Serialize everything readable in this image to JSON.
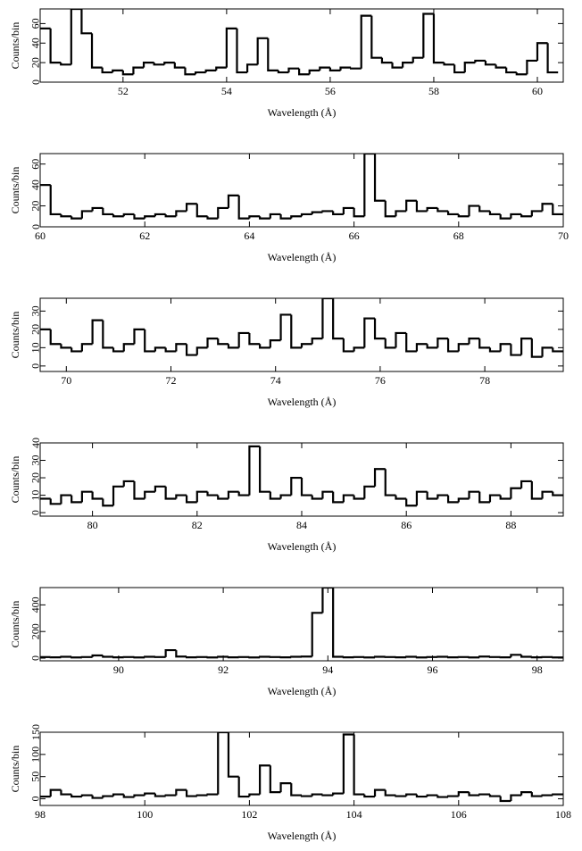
{
  "chart_data": [
    {
      "type": "histogram",
      "xlabel": "Wavelength (Å)",
      "ylabel": "Counts/bin",
      "bins": [
        50.4,
        50.6,
        50.8,
        51.0,
        51.2,
        51.4,
        51.6,
        51.8,
        52.0,
        52.2,
        52.4,
        52.6,
        52.8,
        53.0,
        53.2,
        53.4,
        53.6,
        53.8,
        54.0,
        54.2,
        54.4,
        54.6,
        54.8,
        55.0,
        55.2,
        55.4,
        55.6,
        55.8,
        56.0,
        56.2,
        56.4,
        56.6,
        56.8,
        57.0,
        57.2,
        57.4,
        57.6,
        57.8,
        58.0,
        58.2,
        58.4,
        58.6,
        58.8,
        59.0,
        59.2,
        59.4,
        59.6,
        59.8,
        60.0,
        60.2,
        60.4
      ],
      "values": [
        55,
        20,
        18,
        75,
        50,
        15,
        10,
        12,
        8,
        15,
        20,
        18,
        20,
        15,
        8,
        10,
        12,
        15,
        55,
        10,
        18,
        45,
        12,
        10,
        14,
        8,
        12,
        15,
        12,
        15,
        14,
        68,
        25,
        20,
        15,
        20,
        25,
        70,
        20,
        18,
        10,
        20,
        22,
        18,
        15,
        10,
        8,
        22,
        40,
        10
      ],
      "color": "#000000",
      "xlim": [
        50.4,
        60.5
      ],
      "ylim": [
        0,
        75
      ],
      "xticks": [
        52,
        54,
        56,
        58,
        60
      ],
      "yticks": [
        0,
        20,
        40,
        60
      ]
    },
    {
      "type": "histogram",
      "xlabel": "Wavelength (Å)",
      "ylabel": "Counts/bin",
      "bins": [
        60.0,
        60.2,
        60.4,
        60.6,
        60.8,
        61.0,
        61.2,
        61.4,
        61.6,
        61.8,
        62.0,
        62.2,
        62.4,
        62.6,
        62.8,
        63.0,
        63.2,
        63.4,
        63.6,
        63.8,
        64.0,
        64.2,
        64.4,
        64.6,
        64.8,
        65.0,
        65.2,
        65.4,
        65.6,
        65.8,
        66.0,
        66.2,
        66.4,
        66.6,
        66.8,
        67.0,
        67.2,
        67.4,
        67.6,
        67.8,
        68.0,
        68.2,
        68.4,
        68.6,
        68.8,
        69.0,
        69.2,
        69.4,
        69.6,
        69.8,
        70.0
      ],
      "values": [
        40,
        12,
        10,
        8,
        15,
        18,
        12,
        10,
        12,
        8,
        10,
        12,
        10,
        15,
        22,
        10,
        8,
        18,
        30,
        8,
        10,
        8,
        12,
        8,
        10,
        12,
        14,
        15,
        12,
        18,
        10,
        70,
        25,
        10,
        15,
        25,
        15,
        18,
        15,
        12,
        10,
        20,
        15,
        12,
        8,
        12,
        10,
        15,
        22,
        12
      ],
      "color": "#000000",
      "xlim": [
        60,
        70
      ],
      "ylim": [
        0,
        70
      ],
      "xticks": [
        60,
        62,
        64,
        66,
        68,
        70
      ],
      "yticks": [
        0,
        20,
        40,
        60
      ]
    },
    {
      "type": "histogram",
      "xlabel": "Wavelength (Å)",
      "ylabel": "Counts/bin",
      "bins": [
        69.5,
        69.7,
        69.9,
        70.1,
        70.3,
        70.5,
        70.7,
        70.9,
        71.1,
        71.3,
        71.5,
        71.7,
        71.9,
        72.1,
        72.3,
        72.5,
        72.7,
        72.9,
        73.1,
        73.3,
        73.5,
        73.7,
        73.9,
        74.1,
        74.3,
        74.5,
        74.7,
        74.9,
        75.1,
        75.3,
        75.5,
        75.7,
        75.9,
        76.1,
        76.3,
        76.5,
        76.7,
        76.9,
        77.1,
        77.3,
        77.5,
        77.7,
        77.9,
        78.1,
        78.3,
        78.5,
        78.7,
        78.9,
        79.1,
        79.3,
        79.5
      ],
      "values": [
        20,
        12,
        10,
        8,
        12,
        25,
        10,
        8,
        12,
        20,
        8,
        10,
        8,
        12,
        6,
        10,
        15,
        12,
        10,
        18,
        12,
        10,
        14,
        28,
        10,
        12,
        15,
        37,
        15,
        8,
        10,
        26,
        15,
        10,
        18,
        8,
        12,
        10,
        15,
        8,
        12,
        15,
        10,
        8,
        12,
        6,
        15,
        5,
        10,
        8
      ],
      "color": "#000000",
      "xlim": [
        69.5,
        79.5
      ],
      "ylim": [
        -3,
        37
      ],
      "xticks": [
        70,
        72,
        74,
        76,
        78
      ],
      "yticks": [
        0,
        10,
        20,
        30
      ]
    },
    {
      "type": "histogram",
      "xlabel": "Wavelength (Å)",
      "ylabel": "Counts/bin",
      "bins": [
        79.0,
        79.2,
        79.4,
        79.6,
        79.8,
        80.0,
        80.2,
        80.4,
        80.6,
        80.8,
        81.0,
        81.2,
        81.4,
        81.6,
        81.8,
        82.0,
        82.2,
        82.4,
        82.6,
        82.8,
        83.0,
        83.2,
        83.4,
        83.6,
        83.8,
        84.0,
        84.2,
        84.4,
        84.6,
        84.8,
        85.0,
        85.2,
        85.4,
        85.6,
        85.8,
        86.0,
        86.2,
        86.4,
        86.6,
        86.8,
        87.0,
        87.2,
        87.4,
        87.6,
        87.8,
        88.0,
        88.2,
        88.4,
        88.6,
        88.8,
        89.0
      ],
      "values": [
        8,
        5,
        10,
        6,
        12,
        8,
        4,
        15,
        18,
        8,
        12,
        15,
        8,
        10,
        6,
        12,
        10,
        8,
        12,
        10,
        38,
        12,
        8,
        10,
        20,
        10,
        8,
        12,
        6,
        10,
        8,
        15,
        25,
        10,
        8,
        4,
        12,
        8,
        10,
        6,
        8,
        12,
        6,
        10,
        8,
        14,
        18,
        8,
        12,
        10
      ],
      "color": "#000000",
      "xlim": [
        79,
        89
      ],
      "ylim": [
        -2,
        40
      ],
      "xticks": [
        80,
        82,
        84,
        86,
        88
      ],
      "yticks": [
        0,
        10,
        20,
        30,
        40
      ]
    },
    {
      "type": "histogram",
      "xlabel": "Wavelength (Å)",
      "ylabel": "Counts/bin",
      "bins": [
        88.5,
        88.7,
        88.9,
        89.1,
        89.3,
        89.5,
        89.7,
        89.9,
        90.1,
        90.3,
        90.5,
        90.7,
        90.9,
        91.1,
        91.3,
        91.5,
        91.7,
        91.9,
        92.1,
        92.3,
        92.5,
        92.7,
        92.9,
        93.1,
        93.3,
        93.5,
        93.7,
        93.9,
        94.1,
        94.3,
        94.5,
        94.7,
        94.9,
        95.1,
        95.3,
        95.5,
        95.7,
        95.9,
        96.1,
        96.3,
        96.5,
        96.7,
        96.9,
        97.1,
        97.3,
        97.5,
        97.7,
        97.9,
        98.1,
        98.3,
        98.5
      ],
      "values": [
        8,
        6,
        10,
        5,
        8,
        20,
        10,
        6,
        8,
        5,
        10,
        8,
        60,
        12,
        6,
        8,
        5,
        10,
        6,
        8,
        5,
        10,
        8,
        6,
        10,
        12,
        340,
        530,
        10,
        6,
        8,
        5,
        10,
        8,
        6,
        10,
        5,
        8,
        10,
        6,
        8,
        5,
        12,
        8,
        6,
        25,
        10,
        6,
        8,
        5
      ],
      "color": "#000000",
      "xlim": [
        88.5,
        98.5
      ],
      "ylim": [
        -20,
        530
      ],
      "xticks": [
        90,
        92,
        94,
        96,
        98
      ],
      "yticks": [
        0,
        200,
        400
      ]
    },
    {
      "type": "histogram",
      "xlabel": "Wavelength (Å)",
      "ylabel": "Counts/bin",
      "bins": [
        98.0,
        98.2,
        98.4,
        98.6,
        98.8,
        99.0,
        99.2,
        99.4,
        99.6,
        99.8,
        100.0,
        100.2,
        100.4,
        100.6,
        100.8,
        101.0,
        101.2,
        101.4,
        101.6,
        101.8,
        102.0,
        102.2,
        102.4,
        102.6,
        102.8,
        103.0,
        103.2,
        103.4,
        103.6,
        103.8,
        104.0,
        104.2,
        104.4,
        104.6,
        104.8,
        105.0,
        105.2,
        105.4,
        105.6,
        105.8,
        106.0,
        106.2,
        106.4,
        106.6,
        106.8,
        107.0,
        107.2,
        107.4,
        107.6,
        107.8,
        108.0
      ],
      "values": [
        5,
        20,
        10,
        5,
        8,
        2,
        6,
        10,
        4,
        8,
        12,
        6,
        8,
        20,
        6,
        8,
        10,
        150,
        50,
        5,
        10,
        75,
        15,
        35,
        8,
        6,
        10,
        8,
        12,
        145,
        10,
        5,
        20,
        8,
        6,
        10,
        5,
        8,
        4,
        6,
        15,
        8,
        10,
        6,
        -5,
        8,
        15,
        6,
        8,
        10
      ],
      "color": "#000000",
      "xlim": [
        98,
        108
      ],
      "ylim": [
        -15,
        150
      ],
      "xticks": [
        98,
        100,
        102,
        104,
        106,
        108
      ],
      "yticks": [
        0,
        50,
        100,
        150
      ]
    }
  ]
}
